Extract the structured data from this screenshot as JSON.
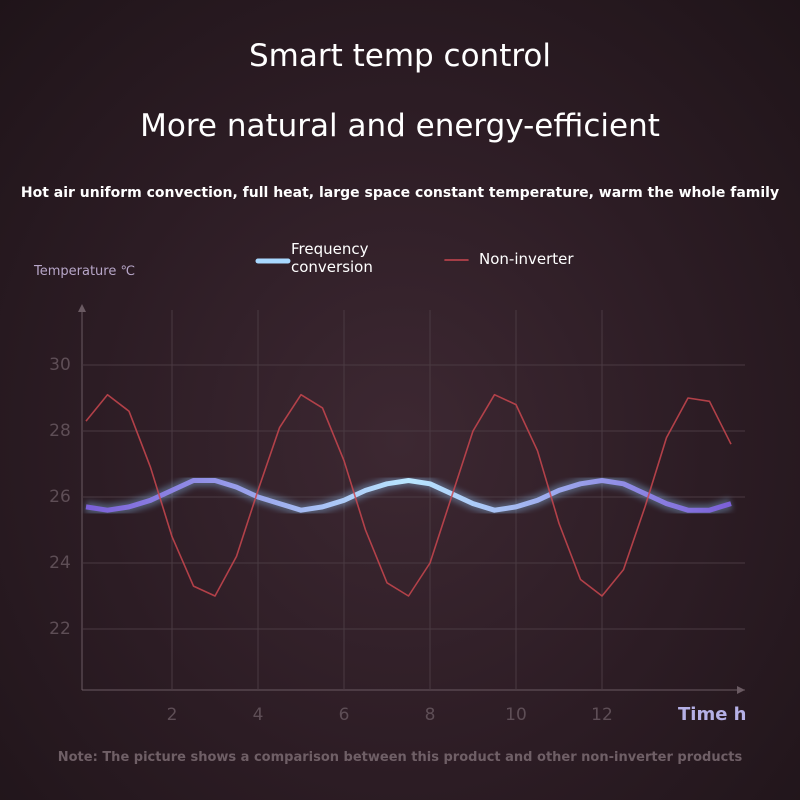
{
  "chart_data": {
    "type": "line",
    "title": "Smart temp control",
    "subtitle": "More natural and energy-efficient",
    "description": "Hot air uniform convection, full heat, large space constant temperature, warm the whole family",
    "y_label": "Temperature ℃",
    "x_label": "Time h",
    "note": "Note: The picture shows a comparison between this product and other non-inverter products",
    "x": [
      0,
      0.5,
      1,
      1.5,
      2,
      2.5,
      3,
      3.5,
      4,
      4.5,
      5,
      5.5,
      6,
      6.5,
      7,
      7.5,
      8,
      8.5,
      9,
      9.5,
      10,
      10.5,
      11,
      11.5,
      12,
      12.5,
      13,
      13.5,
      14,
      14.5,
      15
    ],
    "series": [
      {
        "name": "Frequency conversion",
        "color": "#8fc4f5",
        "values": [
          25.7,
          25.6,
          25.7,
          25.9,
          26.2,
          26.5,
          26.5,
          26.3,
          26.0,
          25.8,
          25.6,
          25.7,
          25.9,
          26.2,
          26.4,
          26.5,
          26.4,
          26.1,
          25.8,
          25.6,
          25.7,
          25.9,
          26.2,
          26.4,
          26.5,
          26.4,
          26.1,
          25.8,
          25.6,
          25.6,
          25.8
        ]
      },
      {
        "name": "Non-inverter",
        "color": "#c9474f",
        "values": [
          28.3,
          29.1,
          28.6,
          26.9,
          24.8,
          23.3,
          23.0,
          24.2,
          26.2,
          28.1,
          29.1,
          28.7,
          27.1,
          25.0,
          23.4,
          23.0,
          24.0,
          26.0,
          28.0,
          29.1,
          28.8,
          27.4,
          25.2,
          23.5,
          23.0,
          23.8,
          25.7,
          27.8,
          29.0,
          28.9,
          27.6
        ]
      }
    ],
    "xlim": [
      0,
      15.5
    ],
    "ylim": [
      20,
      31.5
    ],
    "xticks": [
      2,
      4,
      6,
      8,
      10,
      12
    ],
    "yticks": [
      22,
      24,
      26,
      28,
      30
    ],
    "grid": true
  }
}
